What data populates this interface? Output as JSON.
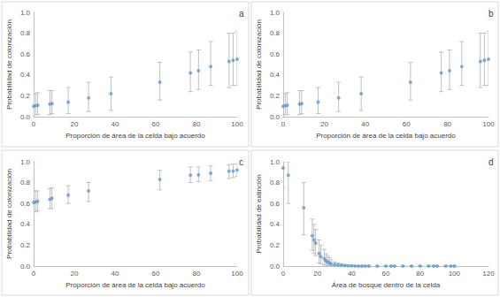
{
  "chart_data": [
    {
      "type": "scatter",
      "title": "a",
      "x_label": "Proporción de área de la celda bajo acuerdo",
      "y_label": "Probabilidad de colonización",
      "x": [
        0,
        1,
        2,
        8,
        9,
        17,
        27,
        38,
        62,
        77,
        81,
        87,
        96,
        98,
        100
      ],
      "values": [
        0.1,
        0.105,
        0.11,
        0.12,
        0.125,
        0.14,
        0.18,
        0.22,
        0.33,
        0.42,
        0.44,
        0.48,
        0.53,
        0.54,
        0.55
      ],
      "error_low": [
        0.02,
        0.02,
        0.02,
        0.02,
        0.03,
        0.03,
        0.05,
        0.06,
        0.16,
        0.24,
        0.26,
        0.3,
        0.28,
        0.3,
        0.3
      ],
      "error_high": [
        0.22,
        0.22,
        0.23,
        0.25,
        0.25,
        0.28,
        0.33,
        0.38,
        0.52,
        0.62,
        0.64,
        0.72,
        0.8,
        0.8,
        0.82
      ],
      "color": "#5b9bd5",
      "marker": "circle",
      "grid": false,
      "xlim": [
        0,
        100
      ],
      "xticks": [
        0,
        20,
        40,
        60,
        80,
        100
      ],
      "ylim": [
        0,
        1
      ],
      "yticks": [
        {
          "value": 0,
          "label": "0.0"
        },
        {
          "value": 0.2,
          "label": "0.2"
        },
        {
          "value": 0.4,
          "label": "0.4"
        },
        {
          "value": 0.6,
          "label": "0.6"
        },
        {
          "value": 0.8,
          "label": "0.8"
        },
        {
          "value": 1,
          "label": "1.0"
        }
      ]
    },
    {
      "type": "scatter",
      "title": "b",
      "x_label": "Proporción de área de la celda bajo acuerdo",
      "y_label": "Probabilidad de colonización",
      "x": [
        0,
        1,
        2,
        8,
        9,
        17,
        27,
        38,
        62,
        77,
        81,
        87,
        96,
        98,
        100
      ],
      "values": [
        0.1,
        0.105,
        0.11,
        0.12,
        0.125,
        0.14,
        0.18,
        0.22,
        0.33,
        0.42,
        0.44,
        0.48,
        0.53,
        0.54,
        0.55
      ],
      "error_low": [
        0.02,
        0.02,
        0.02,
        0.02,
        0.03,
        0.03,
        0.05,
        0.06,
        0.16,
        0.24,
        0.26,
        0.3,
        0.28,
        0.3,
        0.3
      ],
      "error_high": [
        0.22,
        0.22,
        0.23,
        0.25,
        0.25,
        0.28,
        0.33,
        0.38,
        0.52,
        0.62,
        0.64,
        0.72,
        0.8,
        0.8,
        0.82
      ],
      "color": "#5b9bd5",
      "marker": "circle",
      "grid": false,
      "xlim": [
        0,
        100
      ],
      "xticks": [
        0,
        20,
        40,
        60,
        80,
        100
      ],
      "ylim": [
        0,
        1
      ],
      "yticks": [
        {
          "value": 0,
          "label": "0.0"
        },
        {
          "value": 0.2,
          "label": "0.2"
        },
        {
          "value": 0.4,
          "label": "0.4"
        },
        {
          "value": 0.6,
          "label": "0.6"
        },
        {
          "value": 0.8,
          "label": "0.8"
        },
        {
          "value": 1,
          "label": "1.0"
        }
      ]
    },
    {
      "type": "scatter",
      "title": "c",
      "x_label": "Proporción de área de la celda bajo acuerdo",
      "y_label": "Probabilidad de colonización",
      "x": [
        0,
        1,
        2,
        8,
        9,
        17,
        27,
        62,
        77,
        81,
        87,
        96,
        98,
        100
      ],
      "values": [
        0.61,
        0.615,
        0.62,
        0.64,
        0.65,
        0.68,
        0.72,
        0.83,
        0.87,
        0.875,
        0.89,
        0.91,
        0.91,
        0.92
      ],
      "error_low": [
        0.52,
        0.52,
        0.53,
        0.55,
        0.55,
        0.6,
        0.62,
        0.73,
        0.8,
        0.81,
        0.82,
        0.84,
        0.85,
        0.86
      ],
      "error_high": [
        0.72,
        0.72,
        0.72,
        0.74,
        0.75,
        0.77,
        0.8,
        0.92,
        0.95,
        0.95,
        0.96,
        0.97,
        0.98,
        0.98
      ],
      "color": "#5b9bd5",
      "marker": "circle",
      "grid": false,
      "xlim": [
        0,
        100
      ],
      "xticks": [
        0,
        20,
        40,
        60,
        80,
        100
      ],
      "ylim": [
        0,
        1
      ],
      "yticks": [
        {
          "value": 0,
          "label": "0.0"
        },
        {
          "value": 0.2,
          "label": "0.2"
        },
        {
          "value": 0.4,
          "label": "0.4"
        },
        {
          "value": 0.6,
          "label": "0.6"
        },
        {
          "value": 0.8,
          "label": "0.8"
        },
        {
          "value": 1,
          "label": "1.0"
        }
      ]
    },
    {
      "type": "scatter",
      "title": "d",
      "x_label": "Área de bosque dentro de la celda",
      "y_label": "Probabilidad de extinción",
      "x": [
        0,
        3,
        12,
        17,
        18,
        19,
        21,
        22,
        24,
        25,
        26,
        27,
        28,
        30,
        32,
        34,
        36,
        38,
        40,
        42,
        44,
        46,
        48,
        50,
        55,
        60,
        63,
        65,
        70,
        75,
        80,
        85,
        88,
        90,
        95,
        98,
        100
      ],
      "values": [
        0.94,
        0.87,
        0.56,
        0.29,
        0.25,
        0.22,
        0.12,
        0.09,
        0.07,
        0.05,
        0.04,
        0.03,
        0.02,
        0.015,
        0.01,
        0.008,
        0.005,
        0.003,
        0.002,
        0.001,
        0,
        0,
        0,
        0,
        0,
        0,
        0,
        0,
        0,
        0,
        0,
        0,
        0,
        0,
        0,
        0,
        0
      ],
      "error_low": [
        0.75,
        0.6,
        0.3,
        0.15,
        0.12,
        0.1,
        0.03,
        0.02,
        0.01,
        0.01,
        0.005,
        0.003,
        0.002,
        0.001,
        0,
        0,
        0,
        0,
        0,
        0,
        0,
        0,
        0,
        0,
        0,
        0,
        0,
        0,
        0,
        0,
        0,
        0,
        0,
        0,
        0,
        0,
        0
      ],
      "error_high": [
        1.0,
        1.0,
        0.8,
        0.45,
        0.4,
        0.35,
        0.25,
        0.2,
        0.16,
        0.12,
        0.1,
        0.08,
        0.06,
        0.04,
        0.03,
        0.02,
        0.015,
        0.01,
        0.008,
        0.005,
        0.003,
        0.002,
        0.001,
        0.001,
        0,
        0,
        0,
        0,
        0,
        0,
        0,
        0,
        0,
        0,
        0,
        0,
        0
      ],
      "color": "#5b9bd5",
      "marker": "circle",
      "grid": false,
      "xlim": [
        0,
        120
      ],
      "xticks": [
        0,
        20,
        40,
        60,
        80,
        100,
        120
      ],
      "ylim": [
        0,
        1
      ],
      "yticks": [
        {
          "value": 0,
          "label": "0.0"
        },
        {
          "value": 0.2,
          "label": "0.2"
        },
        {
          "value": 0.4,
          "label": "0.4"
        },
        {
          "value": 0.6,
          "label": "0.6"
        },
        {
          "value": 0.8,
          "label": "0.8"
        },
        {
          "value": 1,
          "label": "1.0"
        }
      ]
    }
  ]
}
